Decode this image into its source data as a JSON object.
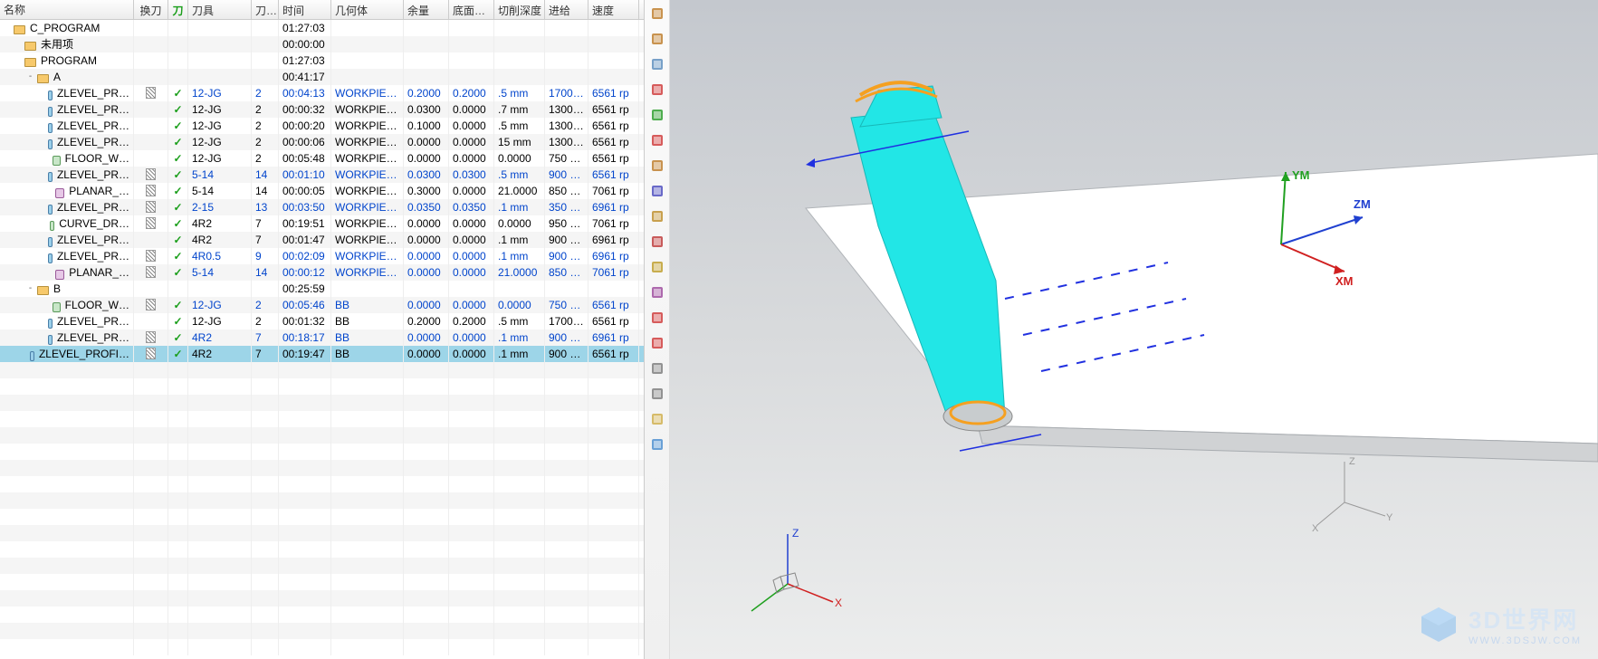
{
  "columns": {
    "name": "名称",
    "toolchange": "换刀",
    "chk": "刀",
    "tool": "刀具",
    "toolno": "刀…",
    "time": "时间",
    "geom": "几何体",
    "stock": "余量",
    "floor": "底面…",
    "depth": "切削深度",
    "feed": "进给",
    "speed": "速度"
  },
  "rows": [
    {
      "depth": 0,
      "type": "root",
      "name": "C_PROGRAM",
      "time": "01:27:03"
    },
    {
      "depth": 1,
      "type": "folder",
      "name": "未用项",
      "time": "00:00:00"
    },
    {
      "depth": 1,
      "type": "folder",
      "name": "PROGRAM",
      "time": "01:27:03"
    },
    {
      "depth": 2,
      "type": "folder",
      "name": "A",
      "time": "00:41:17",
      "exp": "-"
    },
    {
      "depth": 3,
      "type": "op",
      "name": "ZLEVEL_PR…",
      "chg": true,
      "chk": "✓",
      "tool": "12-JG",
      "toolno": "2",
      "time": "00:04:13",
      "geom": "WORKPIECE",
      "stock": "0.2000",
      "floor": "0.2000",
      "doc": ".5 mm",
      "feed": "1700 …",
      "speed": "6561 rp",
      "blue": true
    },
    {
      "depth": 3,
      "type": "op",
      "name": "ZLEVEL_PR…",
      "chg": false,
      "chk": "✓",
      "tool": "12-JG",
      "toolno": "2",
      "time": "00:00:32",
      "geom": "WORKPIECE",
      "stock": "0.0300",
      "floor": "0.0000",
      "doc": ".7 mm",
      "feed": "1300 …",
      "speed": "6561 rp",
      "blue": false
    },
    {
      "depth": 3,
      "type": "op",
      "name": "ZLEVEL_PR…",
      "chg": false,
      "chk": "✓",
      "tool": "12-JG",
      "toolno": "2",
      "time": "00:00:20",
      "geom": "WORKPIECE",
      "stock": "0.1000",
      "floor": "0.0000",
      "doc": ".5 mm",
      "feed": "1300 …",
      "speed": "6561 rp",
      "blue": false
    },
    {
      "depth": 3,
      "type": "op",
      "name": "ZLEVEL_PR…",
      "chg": false,
      "chk": "✓",
      "tool": "12-JG",
      "toolno": "2",
      "time": "00:00:06",
      "geom": "WORKPIECE",
      "stock": "0.0000",
      "floor": "0.0000",
      "doc": "15 mm",
      "feed": "1300 …",
      "speed": "6561 rp",
      "blue": false
    },
    {
      "depth": 3,
      "type": "op2",
      "name": "FLOOR_W…",
      "chg": false,
      "chk": "✓",
      "tool": "12-JG",
      "toolno": "2",
      "time": "00:05:48",
      "geom": "WORKPIECE",
      "stock": "0.0000",
      "floor": "0.0000",
      "doc": "0.0000",
      "feed": "750 …",
      "speed": "6561 rp",
      "blue": false
    },
    {
      "depth": 3,
      "type": "op",
      "name": "ZLEVEL_PR…",
      "chg": true,
      "chk": "✓",
      "tool": "5-14",
      "toolno": "14",
      "time": "00:01:10",
      "geom": "WORKPIECE",
      "stock": "0.0300",
      "floor": "0.0300",
      "doc": ".5 mm",
      "feed": "900 …",
      "speed": "6561 rp",
      "blue": true
    },
    {
      "depth": 3,
      "type": "op3",
      "name": "PLANAR_…",
      "chg": true,
      "chk": "✓",
      "tool": "5-14",
      "toolno": "14",
      "time": "00:00:05",
      "geom": "WORKPIECE",
      "stock": "0.3000",
      "floor": "0.0000",
      "doc": "21.0000",
      "feed": "850 …",
      "speed": "7061 rp",
      "blue": false
    },
    {
      "depth": 3,
      "type": "op",
      "name": "ZLEVEL_PR…",
      "chg": true,
      "chk": "✓",
      "tool": "2-15",
      "toolno": "13",
      "time": "00:03:50",
      "geom": "WORKPIECE",
      "stock": "0.0350",
      "floor": "0.0350",
      "doc": ".1 mm",
      "feed": "350 …",
      "speed": "6961 rp",
      "blue": true
    },
    {
      "depth": 3,
      "type": "op2",
      "name": "CURVE_DR…",
      "chg": true,
      "chk": "✓",
      "tool": "4R2",
      "toolno": "7",
      "time": "00:19:51",
      "geom": "WORKPIECE",
      "stock": "0.0000",
      "floor": "0.0000",
      "doc": "0.0000",
      "feed": "950 …",
      "speed": "7061 rp",
      "blue": false
    },
    {
      "depth": 3,
      "type": "op",
      "name": "ZLEVEL_PR…",
      "chg": false,
      "chk": "✓",
      "tool": "4R2",
      "toolno": "7",
      "time": "00:01:47",
      "geom": "WORKPIECE",
      "stock": "0.0000",
      "floor": "0.0000",
      "doc": ".1 mm",
      "feed": "900 …",
      "speed": "6961 rp",
      "blue": false
    },
    {
      "depth": 3,
      "type": "op",
      "name": "ZLEVEL_PR…",
      "chg": true,
      "chk": "✓",
      "tool": "4R0.5",
      "toolno": "9",
      "time": "00:02:09",
      "geom": "WORKPIECE",
      "stock": "0.0000",
      "floor": "0.0000",
      "doc": ".1 mm",
      "feed": "900 …",
      "speed": "6961 rp",
      "blue": true
    },
    {
      "depth": 3,
      "type": "op3",
      "name": "PLANAR_…",
      "chg": true,
      "chk": "✓",
      "tool": "5-14",
      "toolno": "14",
      "time": "00:00:12",
      "geom": "WORKPIECE",
      "stock": "0.0000",
      "floor": "0.0000",
      "doc": "21.0000",
      "feed": "850 …",
      "speed": "7061 rp",
      "blue": true
    },
    {
      "depth": 2,
      "type": "folder",
      "name": "B",
      "time": "00:25:59",
      "exp": "-"
    },
    {
      "depth": 3,
      "type": "op2",
      "name": "FLOOR_W…",
      "chg": true,
      "chk": "✓",
      "tool": "12-JG",
      "toolno": "2",
      "time": "00:05:46",
      "geom": "BB",
      "stock": "0.0000",
      "floor": "0.0000",
      "doc": "0.0000",
      "feed": "750 …",
      "speed": "6561 rp",
      "blue": true
    },
    {
      "depth": 3,
      "type": "op",
      "name": "ZLEVEL_PR…",
      "chg": false,
      "chk": "✓",
      "tool": "12-JG",
      "toolno": "2",
      "time": "00:01:32",
      "geom": "BB",
      "stock": "0.2000",
      "floor": "0.2000",
      "doc": ".5 mm",
      "feed": "1700 …",
      "speed": "6561 rp",
      "blue": false
    },
    {
      "depth": 3,
      "type": "op",
      "name": "ZLEVEL_PR…",
      "chg": true,
      "chk": "✓",
      "tool": "4R2",
      "toolno": "7",
      "time": "00:18:17",
      "geom": "BB",
      "stock": "0.0000",
      "floor": "0.0000",
      "doc": ".1 mm",
      "feed": "900 …",
      "speed": "6961 rp",
      "blue": true
    },
    {
      "depth": 2,
      "type": "op",
      "name": "ZLEVEL_PROFI…",
      "chg": true,
      "chk": "✓",
      "tool": "4R2",
      "toolno": "7",
      "time": "00:19:47",
      "geom": "BB",
      "stock": "0.0000",
      "floor": "0.0000",
      "doc": ".1 mm",
      "feed": "900 …",
      "speed": "6561 rp",
      "blue": false,
      "selected": true
    }
  ],
  "toolbar_icons": [
    {
      "name": "ruler-icon",
      "color": "#c08030"
    },
    {
      "name": "angle-icon",
      "color": "#c08030"
    },
    {
      "name": "cube-icon",
      "color": "#6090c0"
    },
    {
      "name": "origin-icon",
      "color": "#d04040"
    },
    {
      "name": "axis-icon",
      "color": "#30a030"
    },
    {
      "name": "wcs-icon",
      "color": "#d04040"
    },
    {
      "name": "box-icon",
      "color": "#c08030"
    },
    {
      "name": "refresh-icon",
      "color": "#5050c0"
    },
    {
      "name": "layers-icon",
      "color": "#c09030"
    },
    {
      "name": "stack-icon",
      "color": "#c04040"
    },
    {
      "name": "paint-icon",
      "color": "#c0a030"
    },
    {
      "name": "shade-icon",
      "color": "#a050a0"
    },
    {
      "name": "solid-icon",
      "color": "#d04040"
    },
    {
      "name": "wire-icon",
      "color": "#d04040"
    },
    {
      "name": "hide-icon",
      "color": "#808080"
    },
    {
      "name": "circle-icon",
      "color": "#808080"
    },
    {
      "name": "sheet-icon",
      "color": "#d0b050"
    },
    {
      "name": "calc-icon",
      "color": "#5090d0"
    }
  ],
  "triad": {
    "x": "XM",
    "y": "YM",
    "z": "ZM",
    "x_color": "#d02020",
    "y_color": "#20a020",
    "z_color": "#2040d0"
  },
  "triad_small": {
    "x": "X",
    "y": "Y",
    "z": "Z"
  },
  "watermark": {
    "title": "3D世界网",
    "sub": "WWW.3DSJW.COM",
    "color": "#cfe2f5"
  },
  "model": {
    "body_color": "#22e6e6",
    "toolpath_color": "#f5a020",
    "edge_color": "#808890",
    "guide_color": "#2030e0"
  },
  "colors": {
    "header_bg_top": "#fdfdfd",
    "header_bg_bot": "#ececec",
    "row_alt": "#f5f5f5",
    "row_sel": "#9dd5e8",
    "link_blue": "#0044cc",
    "check_green": "#1a9e1a",
    "viewport_top": "#c4c8ce",
    "viewport_bot": "#eceded"
  }
}
